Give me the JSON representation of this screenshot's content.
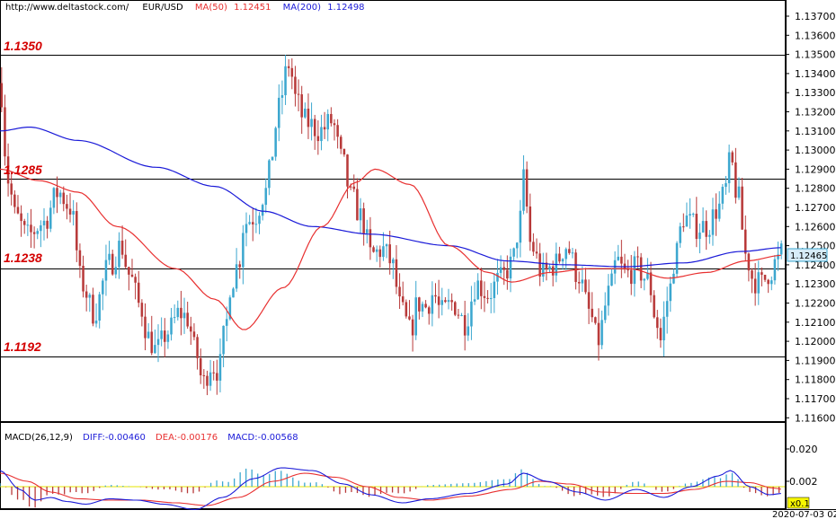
{
  "header": {
    "url": "http://www.deltastock.com/",
    "symbol": "EUR/USD",
    "ma50_label": "MA(50)",
    "ma50_value": "1.12451",
    "ma200_label": "MA(200)",
    "ma200_value": "1.12498"
  },
  "levels": [
    {
      "label": "1.1350",
      "value": 1.135
    },
    {
      "label": "1.1285",
      "value": 1.1285
    },
    {
      "label": "1.1238",
      "value": 1.1238
    },
    {
      "label": "1.1192",
      "value": 1.1192
    }
  ],
  "price_axis": {
    "ticks": [
      "1.13700",
      "1.13600",
      "1.13500",
      "1.13400",
      "1.13300",
      "1.13200",
      "1.13100",
      "1.13000",
      "1.12900",
      "1.12800",
      "1.12700",
      "1.12600",
      "1.12500",
      "1.12400",
      "1.12300",
      "1.12200",
      "1.12100",
      "1.12000",
      "1.11900",
      "1.11800",
      "1.11700",
      "1.11600"
    ],
    "current_price": "1.12465"
  },
  "macd_header": {
    "title": "MACD(26,12,9)",
    "diff": "DIFF:-0.00460",
    "dea": "DEA:-0.00176",
    "macd": "MACD:-0.00568"
  },
  "macd_axis": {
    "ticks": [
      "0.020",
      "0.002"
    ],
    "scale_label": "x0.1"
  },
  "date_label": "2020-07-03 02",
  "colors": {
    "bull": "#3ca7cf",
    "bear": "#b83a3a",
    "ma50": "#e83030",
    "ma200": "#1a1ad8",
    "level_text": "#d40000",
    "macd_zero": "#e4e400"
  },
  "chart_data": {
    "type": "candlestick",
    "symbol": "EUR/USD",
    "ylim": [
      1.1155,
      1.1378
    ],
    "candle_count": 240,
    "price_anchors": [
      [
        0,
        1.1335
      ],
      [
        4,
        1.1285
      ],
      [
        8,
        1.1265
      ],
      [
        14,
        1.1255
      ],
      [
        22,
        1.1262
      ],
      [
        30,
        1.1278
      ],
      [
        36,
        1.127
      ],
      [
        42,
        1.123
      ],
      [
        48,
        1.1215
      ],
      [
        56,
        1.124
      ],
      [
        62,
        1.125
      ],
      [
        66,
        1.1235
      ],
      [
        72,
        1.1218
      ],
      [
        76,
        1.1202
      ],
      [
        80,
        1.1195
      ],
      [
        86,
        1.1205
      ],
      [
        92,
        1.1215
      ],
      [
        96,
        1.1212
      ],
      [
        100,
        1.1195
      ],
      [
        104,
        1.1178
      ],
      [
        108,
        1.1188
      ],
      [
        112,
        1.1185
      ],
      [
        116,
        1.121
      ],
      [
        118,
        1.123
      ],
      [
        122,
        1.124
      ],
      [
        125,
        1.1262
      ],
      [
        130,
        1.1265
      ],
      [
        136,
        1.1278
      ],
      [
        140,
        1.13
      ],
      [
        142,
        1.132
      ],
      [
        148,
        1.1345
      ],
      [
        152,
        1.1325
      ],
      [
        156,
        1.1315
      ],
      [
        164,
        1.131
      ],
      [
        170,
        1.1315
      ],
      [
        175,
        1.1295
      ],
      [
        180,
        1.1275
      ],
      [
        185,
        1.1265
      ],
      [
        190,
        1.1245
      ],
      [
        196,
        1.1248
      ],
      [
        200,
        1.1242
      ],
      [
        206,
        1.1215
      ],
      [
        210,
        1.1205
      ],
      [
        214,
        1.122
      ],
      [
        218,
        1.1218
      ],
      [
        222,
        1.1225
      ],
      [
        226,
        1.1215
      ],
      [
        232,
        1.122
      ],
      [
        238,
        1.121
      ],
      [
        244,
        1.123
      ],
      [
        250,
        1.1225
      ],
      [
        256,
        1.1232
      ],
      [
        262,
        1.124
      ],
      [
        266,
        1.126
      ],
      [
        268,
        1.1285
      ],
      [
        272,
        1.125
      ],
      [
        278,
        1.1235
      ],
      [
        284,
        1.124
      ],
      [
        290,
        1.125
      ],
      [
        296,
        1.1235
      ],
      [
        302,
        1.1215
      ],
      [
        306,
        1.12
      ],
      [
        312,
        1.1225
      ],
      [
        316,
        1.1242
      ],
      [
        320,
        1.1235
      ],
      [
        326,
        1.1238
      ],
      [
        332,
        1.1232
      ],
      [
        336,
        1.1212
      ],
      [
        338,
        1.12
      ],
      [
        342,
        1.1222
      ],
      [
        346,
        1.1245
      ],
      [
        350,
        1.1265
      ],
      [
        356,
        1.126
      ],
      [
        362,
        1.126
      ],
      [
        368,
        1.127
      ],
      [
        372,
        1.128
      ],
      [
        374,
        1.1295
      ],
      [
        378,
        1.1275
      ],
      [
        382,
        1.1245
      ],
      [
        386,
        1.1232
      ],
      [
        390,
        1.123
      ],
      [
        394,
        1.1236
      ],
      [
        398,
        1.1242
      ],
      [
        401,
        1.1247
      ]
    ],
    "ma50_anchors": [
      [
        0,
        1.129
      ],
      [
        20,
        1.1284
      ],
      [
        40,
        1.1278
      ],
      [
        60,
        1.126
      ],
      [
        90,
        1.1238
      ],
      [
        110,
        1.1222
      ],
      [
        125,
        1.1206
      ],
      [
        145,
        1.1228
      ],
      [
        165,
        1.126
      ],
      [
        182,
        1.1283
      ],
      [
        192,
        1.129
      ],
      [
        210,
        1.1282
      ],
      [
        230,
        1.125
      ],
      [
        250,
        1.1236
      ],
      [
        262,
        1.1231
      ],
      [
        282,
        1.1236
      ],
      [
        302,
        1.1238
      ],
      [
        322,
        1.1238
      ],
      [
        342,
        1.1233
      ],
      [
        362,
        1.1236
      ],
      [
        382,
        1.1242
      ],
      [
        401,
        1.1245
      ]
    ],
    "ma200_anchors": [
      [
        0,
        1.131
      ],
      [
        15,
        1.1312
      ],
      [
        40,
        1.1305
      ],
      [
        80,
        1.1291
      ],
      [
        110,
        1.1281
      ],
      [
        135,
        1.1268
      ],
      [
        160,
        1.126
      ],
      [
        190,
        1.1256
      ],
      [
        230,
        1.125
      ],
      [
        260,
        1.1242
      ],
      [
        290,
        1.124
      ],
      [
        320,
        1.1239
      ],
      [
        350,
        1.1241
      ],
      [
        380,
        1.1247
      ],
      [
        401,
        1.1249
      ]
    ],
    "macd_diff_anchors": [
      [
        0,
        0.012
      ],
      [
        10,
        -0.002
      ],
      [
        18,
        -0.01
      ],
      [
        26,
        -0.008
      ],
      [
        34,
        -0.011
      ],
      [
        44,
        -0.013
      ],
      [
        56,
        -0.009
      ],
      [
        70,
        -0.01
      ],
      [
        84,
        -0.013
      ],
      [
        100,
        -0.017
      ],
      [
        114,
        -0.008
      ],
      [
        130,
        0.006
      ],
      [
        144,
        0.014
      ],
      [
        160,
        0.012
      ],
      [
        176,
        0.002
      ],
      [
        190,
        -0.006
      ],
      [
        206,
        -0.012
      ],
      [
        220,
        -0.009
      ],
      [
        240,
        -0.005
      ],
      [
        260,
        0.002
      ],
      [
        268,
        0.01
      ],
      [
        280,
        0.004
      ],
      [
        296,
        -0.004
      ],
      [
        310,
        -0.01
      ],
      [
        326,
        -0.002
      ],
      [
        340,
        -0.008
      ],
      [
        354,
        0.0
      ],
      [
        368,
        0.008
      ],
      [
        374,
        0.012
      ],
      [
        384,
        0.0
      ],
      [
        394,
        -0.006
      ],
      [
        401,
        -0.005
      ]
    ],
    "macd_dea_anchors": [
      [
        0,
        0.01
      ],
      [
        14,
        0.004
      ],
      [
        26,
        -0.004
      ],
      [
        40,
        -0.009
      ],
      [
        56,
        -0.01
      ],
      [
        72,
        -0.01
      ],
      [
        90,
        -0.012
      ],
      [
        106,
        -0.014
      ],
      [
        122,
        -0.008
      ],
      [
        140,
        0.004
      ],
      [
        156,
        0.01
      ],
      [
        172,
        0.007
      ],
      [
        188,
        0.0
      ],
      [
        204,
        -0.008
      ],
      [
        220,
        -0.01
      ],
      [
        240,
        -0.007
      ],
      [
        262,
        -0.002
      ],
      [
        276,
        0.004
      ],
      [
        292,
        0.002
      ],
      [
        308,
        -0.004
      ],
      [
        324,
        -0.005
      ],
      [
        340,
        -0.005
      ],
      [
        356,
        -0.002
      ],
      [
        372,
        0.004
      ],
      [
        384,
        0.003
      ],
      [
        396,
        -0.001
      ],
      [
        401,
        -0.002
      ]
    ],
    "macd_ylim": [
      -0.02,
      0.03
    ]
  }
}
